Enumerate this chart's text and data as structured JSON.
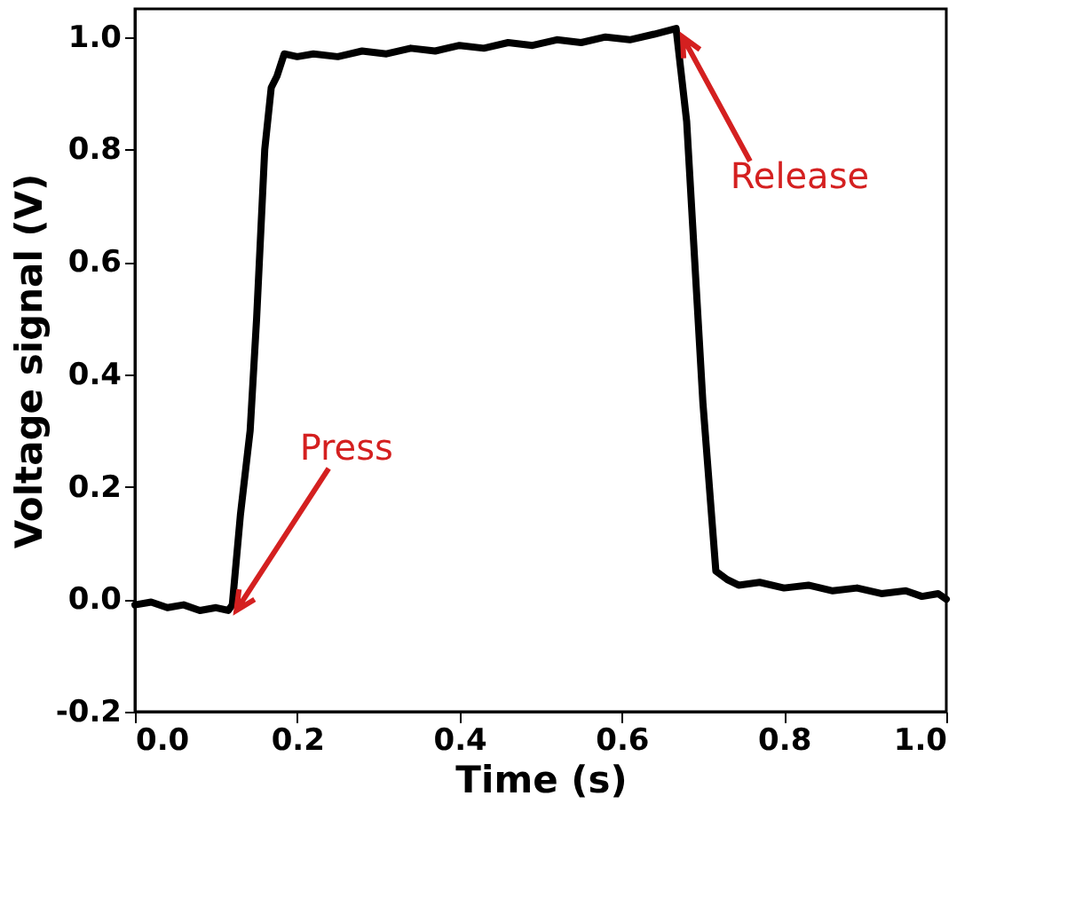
{
  "chart_data": {
    "type": "line",
    "xlabel": "Time (s)",
    "ylabel": "Voltage signal (V)",
    "x": [
      0.0,
      0.02,
      0.04,
      0.06,
      0.08,
      0.1,
      0.115,
      0.12,
      0.13,
      0.142,
      0.15,
      0.16,
      0.168,
      0.175,
      0.184,
      0.2,
      0.22,
      0.25,
      0.28,
      0.31,
      0.34,
      0.37,
      0.4,
      0.43,
      0.46,
      0.49,
      0.52,
      0.55,
      0.58,
      0.61,
      0.64,
      0.667,
      0.68,
      0.69,
      0.7,
      0.716,
      0.73,
      0.744,
      0.77,
      0.8,
      0.83,
      0.86,
      0.89,
      0.92,
      0.95,
      0.97,
      0.99,
      1.0
    ],
    "series": [
      {
        "color": "#000000",
        "values": [
          -0.01,
          -0.005,
          -0.015,
          -0.01,
          -0.02,
          -0.015,
          -0.02,
          -0.01,
          0.15,
          0.3,
          0.5,
          0.8,
          0.91,
          0.93,
          0.97,
          0.965,
          0.97,
          0.965,
          0.975,
          0.97,
          0.98,
          0.975,
          0.985,
          0.98,
          0.99,
          0.985,
          0.995,
          0.99,
          1.0,
          0.995,
          1.005,
          1.015,
          0.85,
          0.6,
          0.35,
          0.05,
          0.035,
          0.025,
          0.03,
          0.02,
          0.025,
          0.015,
          0.02,
          0.01,
          0.015,
          0.005,
          0.01,
          0.0
        ]
      }
    ],
    "xlim": [
      0.0,
      1.0
    ],
    "xticks": [
      {
        "value": 0,
        "label": "0.0"
      },
      0.2,
      0.4,
      0.6,
      0.8,
      {
        "value": 1,
        "label": "1.0"
      }
    ],
    "ylim": [
      -0.2,
      1.05
    ],
    "yticks": [
      -0.2,
      {
        "value": 0,
        "label": "0.0"
      },
      0.2,
      0.4,
      0.6,
      0.8,
      {
        "value": 1,
        "label": "1.0"
      }
    ],
    "annotations": [
      {
        "text": "Press",
        "x": 0.125,
        "y": -0.02
      },
      {
        "text": "Release",
        "x": 0.675,
        "y": 1.0
      }
    ],
    "grid": false,
    "marker": "none",
    "line_style": "solid"
  }
}
